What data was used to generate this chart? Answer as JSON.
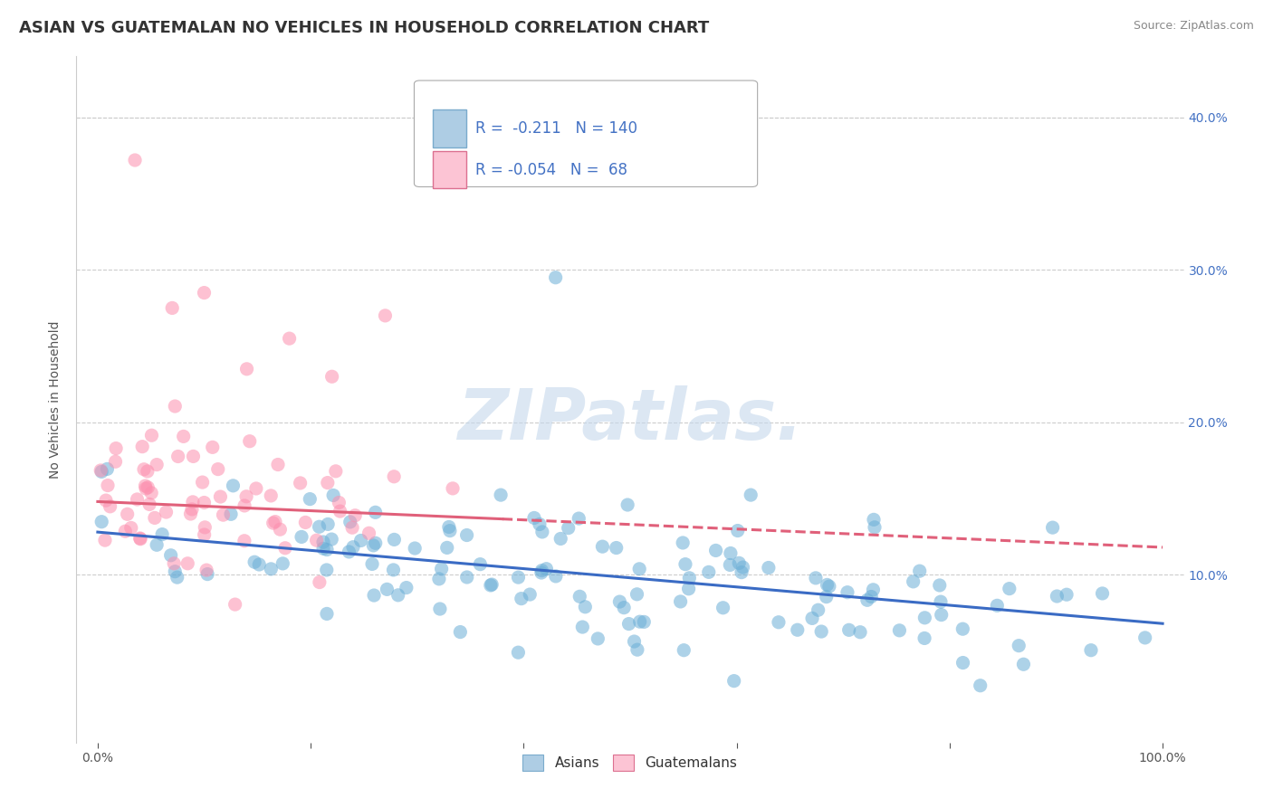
{
  "title": "ASIAN VS GUATEMALAN NO VEHICLES IN HOUSEHOLD CORRELATION CHART",
  "source": "Source: ZipAtlas.com",
  "ylabel": "No Vehicles in Household",
  "x_tick_labels": [
    "0.0%",
    "",
    "",
    "",
    "",
    "100.0%"
  ],
  "y_tick_labels_right": [
    "10.0%",
    "20.0%",
    "30.0%",
    "40.0%"
  ],
  "y_ticks": [
    0.1,
    0.2,
    0.3,
    0.4
  ],
  "xlim": [
    -0.02,
    1.02
  ],
  "ylim": [
    -0.01,
    0.44
  ],
  "legend_r_asian": "-0.211",
  "legend_n_asian": "140",
  "legend_r_guatemalan": "-0.054",
  "legend_n_guatemalan": "68",
  "legend_label_asian": "Asians",
  "legend_label_guatemalan": "Guatemalans",
  "color_asian": "#6baed6",
  "color_guatemalan": "#fc8fae",
  "color_asian_light": "#aecde4",
  "color_guatemalan_light": "#fcc4d4",
  "color_asian_line": "#3a6bc4",
  "color_guatemalan_line": "#e0607a",
  "regression_asian": [
    0.0,
    0.128,
    1.0,
    0.068
  ],
  "regression_guatemalan": [
    0.0,
    0.148,
    1.0,
    0.118
  ],
  "regression_guatemalan_solid_end": 0.38,
  "watermark_text": "ZIPatlas.",
  "background_color": "#ffffff",
  "grid_color": "#cccccc",
  "title_fontsize": 13,
  "source_fontsize": 9,
  "axis_label_fontsize": 10,
  "tick_fontsize": 10,
  "legend_fontsize": 12
}
